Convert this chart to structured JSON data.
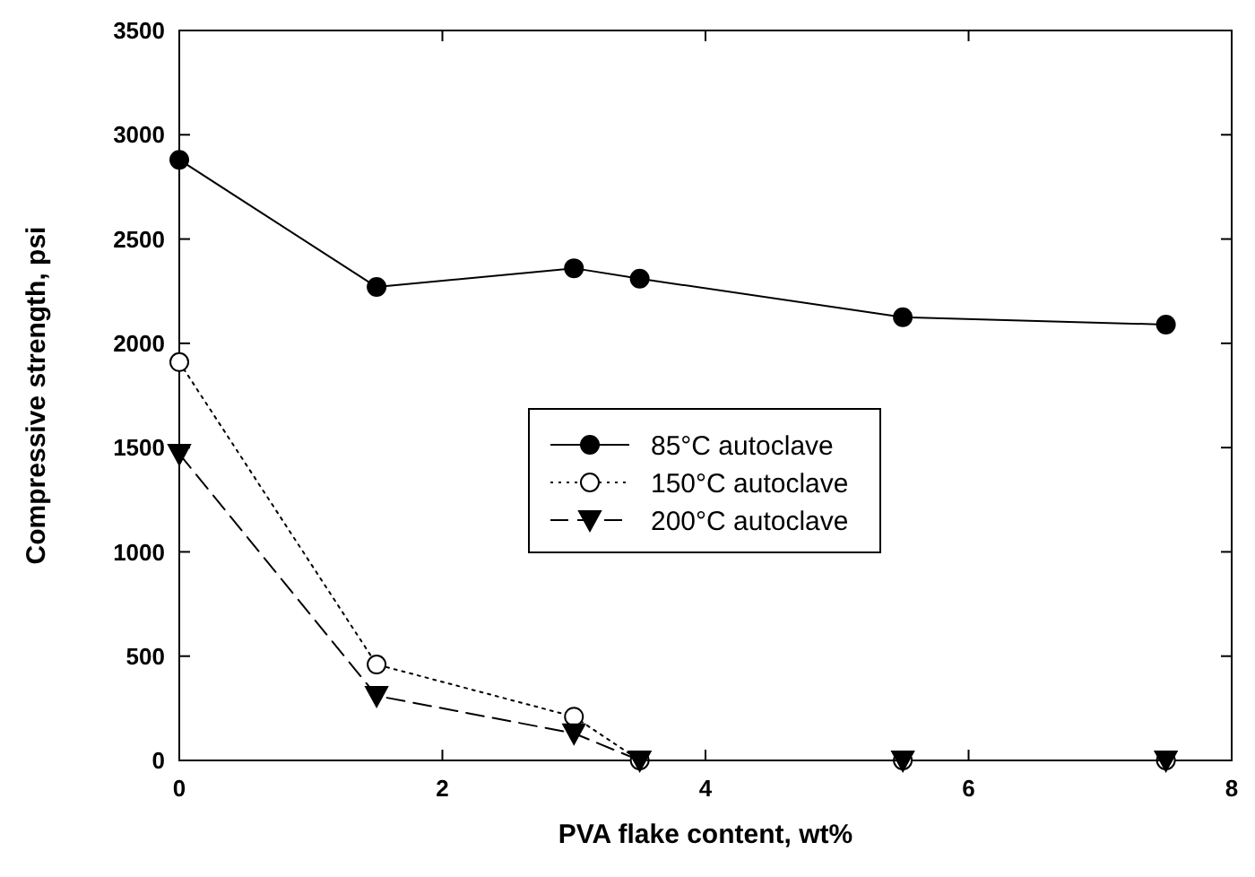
{
  "chart_data": {
    "type": "line",
    "xlabel": "PVA flake content, wt%",
    "ylabel": "Compressive strength, psi",
    "x": [
      0,
      1.5,
      3,
      3.5,
      5.5,
      7.5
    ],
    "series": [
      {
        "name": "85°C autoclave",
        "color": "#000000",
        "values": [
          2880,
          2270,
          2360,
          2310,
          2125,
          2090
        ],
        "marker": "circle",
        "line_style": "solid"
      },
      {
        "name": "150°C autoclave",
        "color": "#000000",
        "values": [
          1910,
          460,
          210,
          0,
          0,
          0
        ],
        "marker": "circle",
        "line_style": "dotted"
      },
      {
        "name": "200°C autoclave",
        "color": "#000000",
        "values": [
          1470,
          310,
          130,
          0,
          0,
          0
        ],
        "marker": "triangle",
        "line_style": "dashed"
      }
    ],
    "xlim": [
      0,
      8
    ],
    "xticks": [
      0,
      2,
      4,
      6,
      8
    ],
    "ylim": [
      0,
      3500
    ],
    "yticks": [
      0,
      500,
      1000,
      1500,
      2000,
      2500,
      3000,
      3500
    ],
    "grid": false,
    "legend": "center"
  }
}
